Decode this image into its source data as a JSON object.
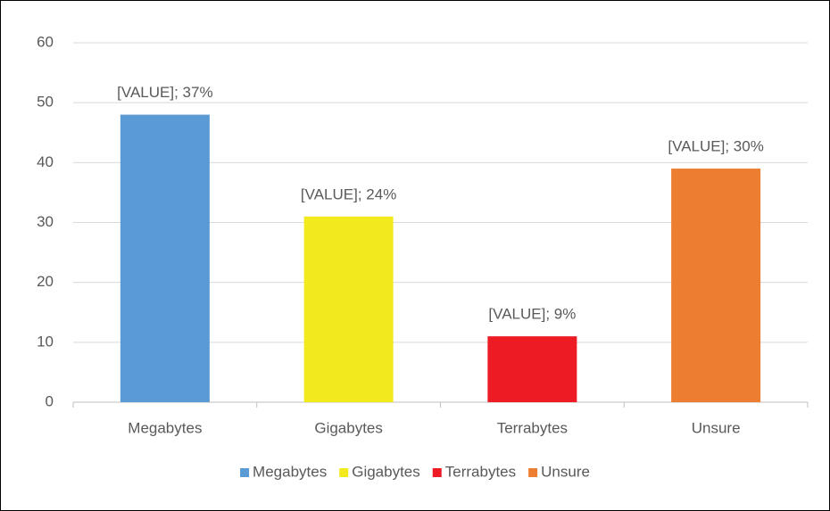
{
  "chart_data": {
    "type": "bar",
    "categories": [
      "Megabytes",
      "Gigabytes",
      "Terrabytes",
      "Unsure"
    ],
    "values": [
      48,
      31,
      11,
      39
    ],
    "value_labels": [
      "[VALUE]; 37%",
      "[VALUE]; 24%",
      "[VALUE]; 9%",
      "[VALUE]; 30%"
    ],
    "colors": [
      "#5b9bd5",
      "#f2ea1c",
      "#ed1c24",
      "#ed7d31"
    ],
    "ylim": [
      0,
      60
    ],
    "yticks": [
      0,
      10,
      20,
      30,
      40,
      50,
      60
    ],
    "grid": true,
    "legend": "bottom"
  }
}
